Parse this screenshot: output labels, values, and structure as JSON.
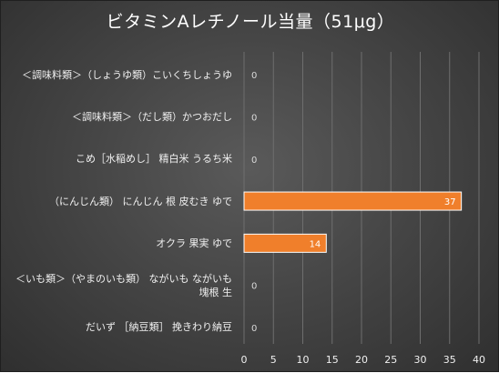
{
  "chart_data": {
    "type": "bar",
    "orientation": "horizontal",
    "title": "ビタミンAレチノール当量（51μg）",
    "categories": [
      "＜調味料類＞（しょうゆ類）こいくちしょうゆ",
      "＜調味料類＞（だし類）かつおだし",
      "こめ［水稲めし］ 精白米 うるち米",
      "（にんじん類） にんじん 根 皮むき ゆで",
      "オクラ 果実 ゆで",
      "＜いも類＞（やまのいも類） ながいも ながいも 塊根 生",
      "だいず ［納豆類］ 挽きわり納豆"
    ],
    "values": [
      0,
      0,
      0,
      37,
      14,
      0,
      0
    ],
    "data_labels": [
      "0",
      "0",
      "0",
      "37",
      "14",
      "0",
      "0"
    ],
    "xlim": [
      0,
      40
    ],
    "xticks": [
      "0",
      "5",
      "10",
      "15",
      "20",
      "25",
      "30",
      "35",
      "40"
    ],
    "xlabel": "",
    "ylabel": "",
    "grid": true,
    "legend": "none",
    "colors": {
      "bar": "#f07f2b",
      "bar_edge": "#ffffff",
      "gridline": "#6e6e6e",
      "text": "#f0f0f0",
      "label_inside": "#ffffff",
      "label_zero": "#d9d9d9"
    }
  }
}
